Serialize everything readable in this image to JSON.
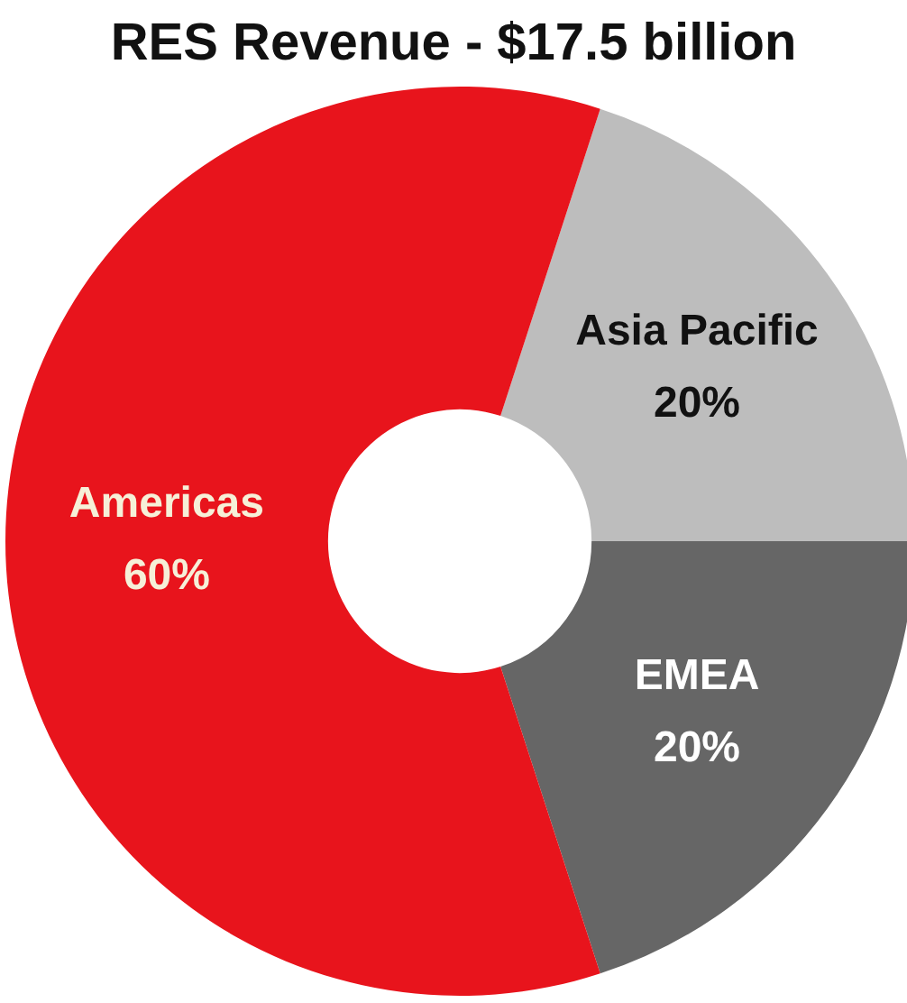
{
  "chart_data": {
    "type": "donut",
    "title": "RES Revenue - $17.5 billion",
    "categories": [
      "Asia Pacific",
      "EMEA",
      "Americas"
    ],
    "values": [
      20,
      20,
      60
    ],
    "colors": [
      "#bdbdbd",
      "#666666",
      "#e8141c"
    ],
    "value_labels": [
      "20%",
      "20%",
      "60%"
    ],
    "legend": false
  }
}
